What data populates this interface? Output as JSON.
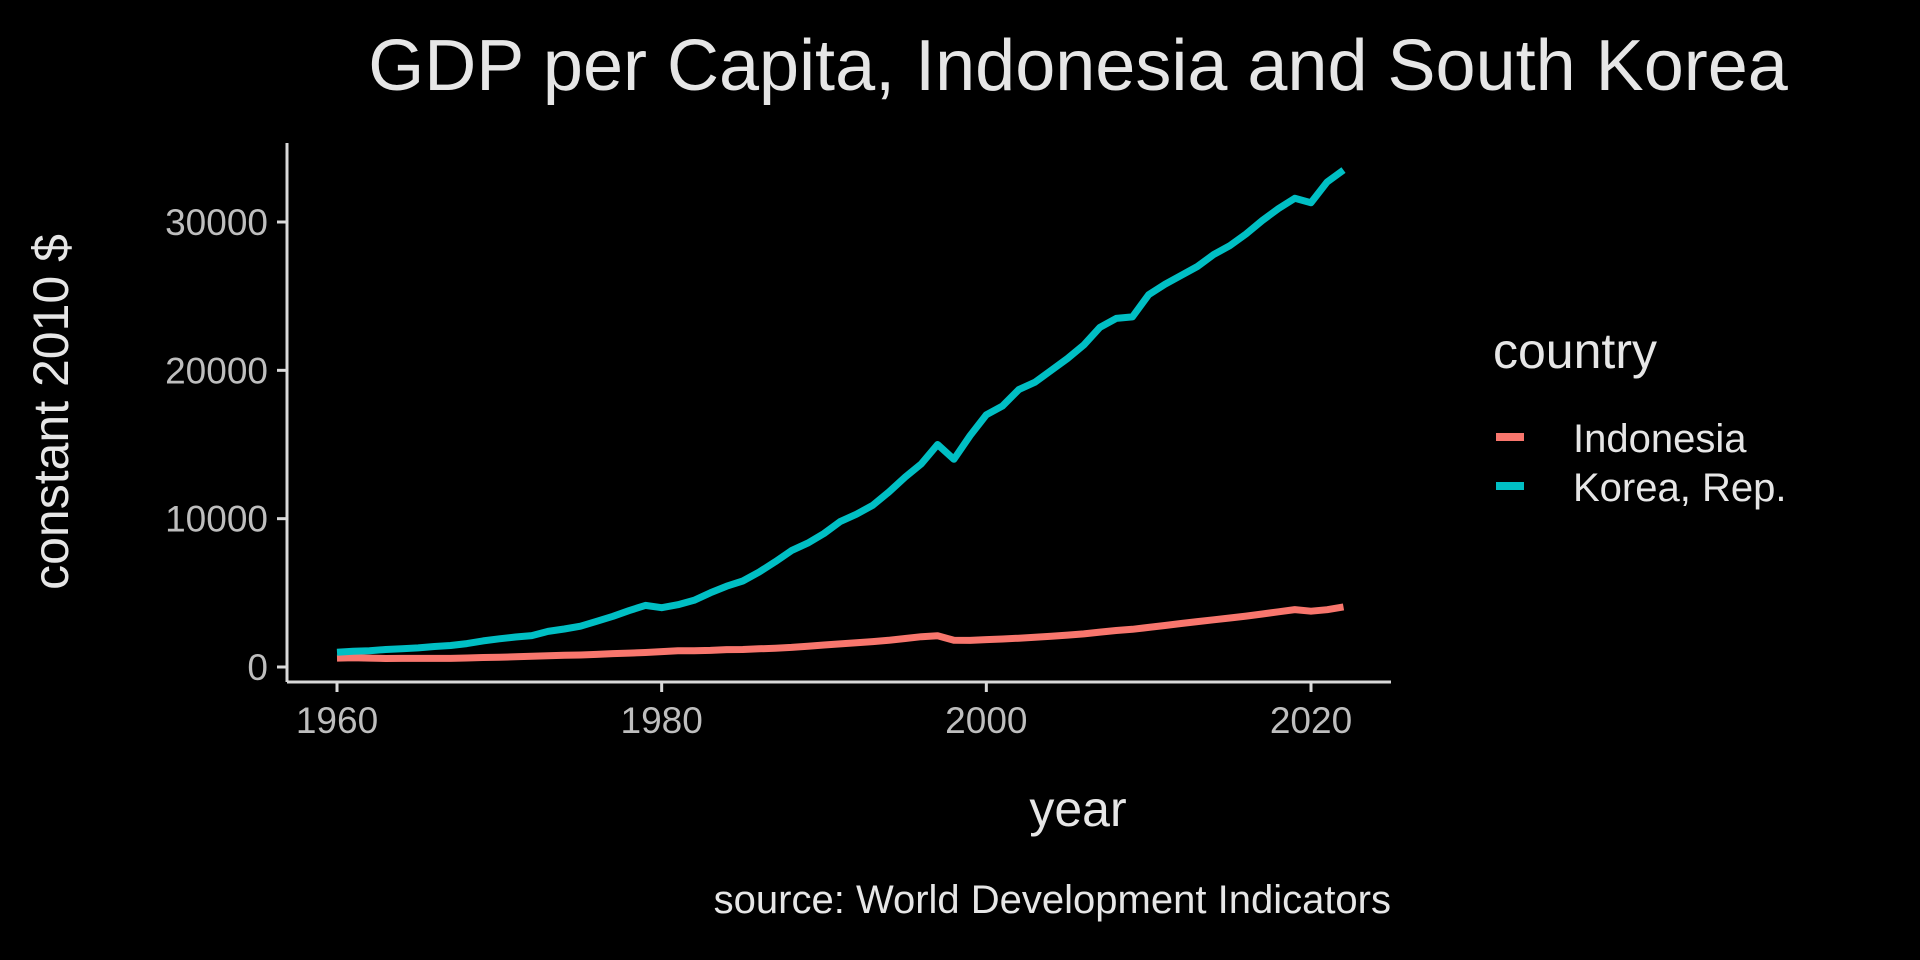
{
  "chart_data": {
    "type": "line",
    "title": "GDP per Capita, Indonesia and South Korea",
    "xlabel": "year",
    "ylabel": "constant 2010 $",
    "caption": "source: World Development Indicators",
    "xlim": [
      1957,
      2025
    ],
    "ylim": [
      -900,
      35000
    ],
    "x_ticks": [
      1960,
      1980,
      2000,
      2020
    ],
    "x_tick_labels": [
      "1960",
      "1980",
      "2000",
      "2020"
    ],
    "y_ticks": [
      0,
      10000,
      20000,
      30000
    ],
    "y_tick_labels": [
      "0",
      "10000",
      "20000",
      "30000"
    ],
    "grid": false,
    "legend": {
      "title": "country",
      "placement": "right"
    },
    "x": [
      1960,
      1961,
      1962,
      1963,
      1964,
      1965,
      1966,
      1967,
      1968,
      1969,
      1970,
      1971,
      1972,
      1973,
      1974,
      1975,
      1976,
      1977,
      1978,
      1979,
      1980,
      1981,
      1982,
      1983,
      1984,
      1985,
      1986,
      1987,
      1988,
      1989,
      1990,
      1991,
      1992,
      1993,
      1994,
      1995,
      1996,
      1997,
      1998,
      1999,
      2000,
      2001,
      2002,
      2003,
      2004,
      2005,
      2006,
      2007,
      2008,
      2009,
      2010,
      2011,
      2012,
      2013,
      2014,
      2015,
      2016,
      2017,
      2018,
      2019,
      2020,
      2021,
      2022
    ],
    "series": [
      {
        "name": "Indonesia",
        "color": "#F8766D",
        "values": [
          600,
          620,
          600,
          570,
          580,
          580,
          580,
          580,
          610,
          640,
          660,
          690,
          720,
          760,
          790,
          810,
          850,
          900,
          940,
          980,
          1040,
          1090,
          1090,
          1120,
          1170,
          1180,
          1230,
          1270,
          1320,
          1400,
          1480,
          1560,
          1630,
          1710,
          1800,
          1920,
          2040,
          2110,
          1800,
          1790,
          1850,
          1890,
          1940,
          2000,
          2070,
          2150,
          2230,
          2350,
          2460,
          2540,
          2670,
          2800,
          2930,
          3060,
          3180,
          3300,
          3430,
          3570,
          3720,
          3870,
          3760,
          3860,
          4050
        ]
      },
      {
        "name": "Korea, Rep.",
        "color": "#00BFC4",
        "values": [
          1000,
          1060,
          1100,
          1180,
          1230,
          1290,
          1380,
          1450,
          1580,
          1760,
          1900,
          2020,
          2120,
          2400,
          2560,
          2750,
          3080,
          3420,
          3800,
          4150,
          4000,
          4200,
          4500,
          5000,
          5450,
          5800,
          6400,
          7100,
          7850,
          8350,
          9000,
          9800,
          10300,
          10900,
          11800,
          12800,
          13700,
          15000,
          14000,
          15600,
          17000,
          17600,
          18700,
          19200,
          20000,
          20800,
          21700,
          22900,
          23500,
          23600,
          25100,
          25800,
          26400,
          27000,
          27800,
          28400,
          29200,
          30100,
          30900,
          31600,
          31300,
          32700,
          33500
        ]
      }
    ]
  }
}
